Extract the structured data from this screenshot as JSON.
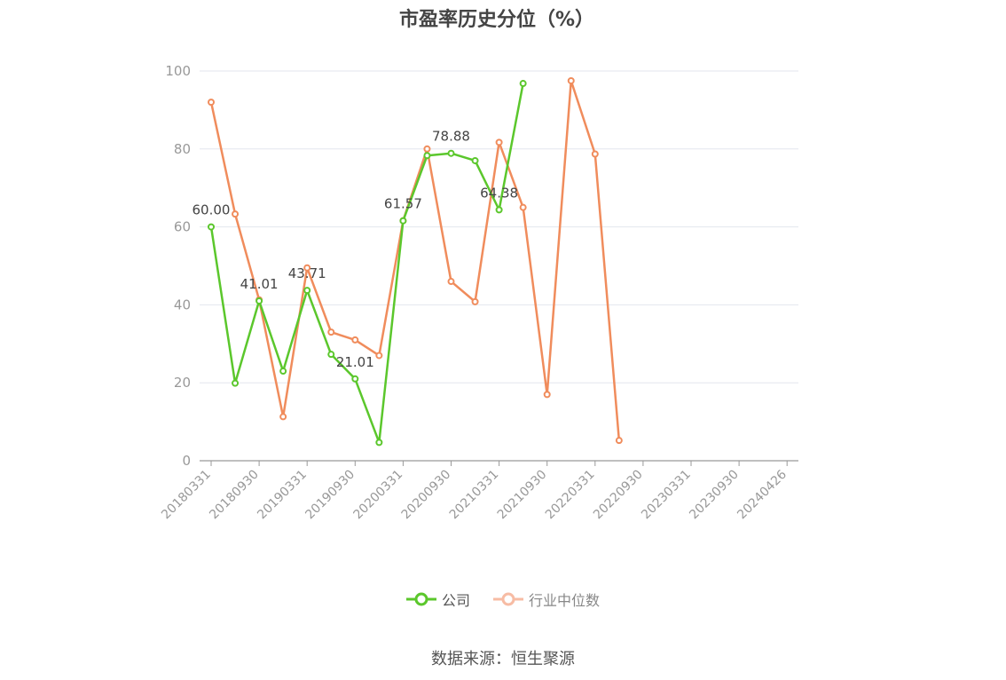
{
  "chart_data": {
    "type": "line",
    "title": "市盈率历史分位（%）",
    "ylim": [
      0,
      100
    ],
    "yticks": [
      0,
      20,
      40,
      60,
      80,
      100
    ],
    "x_tick_labels": [
      "20180331",
      "20180930",
      "20190331",
      "20190930",
      "20200331",
      "20200930",
      "20210331",
      "20210930",
      "20220331",
      "20220930",
      "20230331",
      "20230930",
      "20240426"
    ],
    "grid": true,
    "legend_position": "bottom",
    "series": [
      {
        "name": "公司",
        "color": "#5bc72c",
        "values": [
          60.0,
          19.9,
          41.01,
          23.0,
          43.71,
          27.3,
          21.01,
          4.7,
          61.57,
          78.3,
          78.88,
          77.0,
          64.38,
          96.8
        ]
      },
      {
        "name": "行业中位数",
        "color": "#f08c5c",
        "values": [
          92.0,
          63.3,
          41.3,
          11.3,
          49.5,
          33.0,
          31.0,
          27.0,
          61.6,
          80.0,
          46.0,
          40.8,
          81.7,
          65.0,
          17.0,
          97.5,
          78.7,
          5.2
        ]
      }
    ],
    "data_labels": [
      {
        "series": 0,
        "index": 0,
        "text": "60.00"
      },
      {
        "series": 0,
        "index": 2,
        "text": "41.01"
      },
      {
        "series": 0,
        "index": 4,
        "text": "43.71"
      },
      {
        "series": 0,
        "index": 6,
        "text": "21.01"
      },
      {
        "series": 0,
        "index": 8,
        "text": "61.57"
      },
      {
        "series": 0,
        "index": 10,
        "text": "78.88"
      },
      {
        "series": 0,
        "index": 12,
        "text": "64.38"
      }
    ]
  },
  "legend": {
    "company": "公司",
    "industry": "行业中位数"
  },
  "source": "数据来源：恒生聚源",
  "colors": {
    "company": "#5bc72c",
    "industry": "#f08c5c",
    "industry_legend": "#f7bca4"
  }
}
